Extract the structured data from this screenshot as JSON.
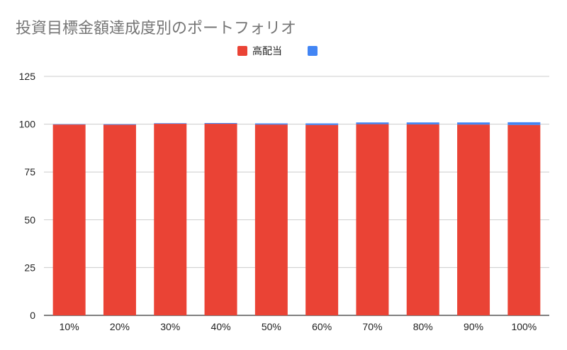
{
  "chart_data": {
    "type": "bar",
    "stacked": true,
    "title": "投資目標金額達成度別のポートフォリオ",
    "xlabel": "",
    "ylabel": "",
    "categories": [
      "10%",
      "20%",
      "30%",
      "40%",
      "50%",
      "60%",
      "70%",
      "80%",
      "90%",
      "100%"
    ],
    "series": [
      {
        "name": "高配当",
        "color": "#ea4335",
        "values": [
          99.8,
          99.7,
          100.2,
          100.2,
          99.8,
          99.6,
          100.0,
          99.9,
          99.8,
          99.6
        ]
      },
      {
        "name": "",
        "color": "#4285f4",
        "values": [
          0.2,
          0.3,
          0.3,
          0.4,
          0.6,
          0.8,
          0.9,
          1.0,
          1.1,
          1.4
        ]
      }
    ],
    "ylim": [
      0,
      125
    ],
    "yticks": [
      0,
      25,
      50,
      75,
      100,
      125
    ],
    "grid": true,
    "legend_position": "top-center"
  }
}
